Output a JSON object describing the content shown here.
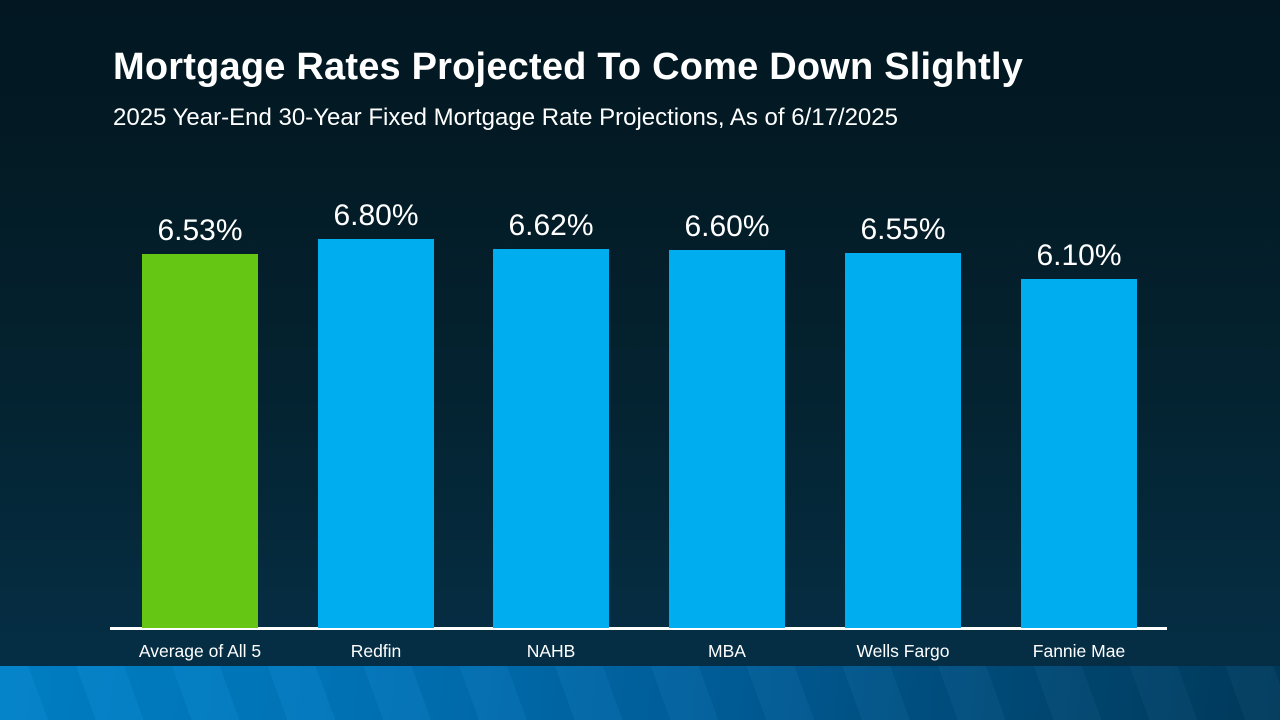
{
  "header": {
    "title": "Mortgage Rates Projected To Come Down Slightly",
    "subtitle": "2025 Year-End 30-Year Fixed Mortgage Rate Projections, As of 6/17/2025"
  },
  "chart_data": {
    "type": "bar",
    "title": "Mortgage Rates Projected To Come Down Slightly",
    "subtitle": "2025 Year-End 30-Year Fixed Mortgage Rate Projections, As of 6/17/2025",
    "categories": [
      "Average of All 5",
      "Redfin",
      "NAHB",
      "MBA",
      "Wells Fargo",
      "Fannie Mae"
    ],
    "values": [
      6.53,
      6.8,
      6.62,
      6.6,
      6.55,
      6.1
    ],
    "value_labels": [
      "6.53%",
      "6.80%",
      "6.62%",
      "6.60%",
      "6.55%",
      "6.10%"
    ],
    "bar_colors": [
      "#66C614",
      "#00AEEF",
      "#00AEEF",
      "#00AEEF",
      "#00AEEF",
      "#00AEEF"
    ],
    "highlight_index": 0,
    "highlight_color": "#66C614",
    "series_color": "#00AEEF",
    "xlabel": "",
    "ylabel": "",
    "ylim": [
      0,
      6.8
    ],
    "grid": false,
    "legend": false,
    "value_label_position": "above-bars",
    "axis_line_color": "#FFFFFF"
  },
  "theme": {
    "background_top": "#031A24",
    "background_bottom": "#05304A",
    "text_color": "#FFFFFF",
    "stripe_gradient_left": "#0080C8",
    "stripe_gradient_right": "#003A5C"
  }
}
